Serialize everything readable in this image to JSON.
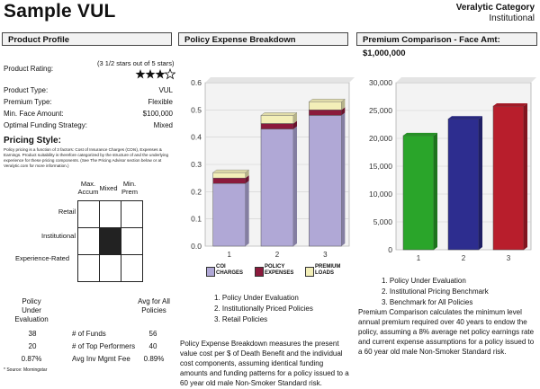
{
  "header": {
    "title": "Sample VUL",
    "category_label": "Veralytic Category",
    "category_value": "Institutional"
  },
  "sections": {
    "profile": "Product Profile",
    "expense": "Policy Expense Breakdown",
    "premium": "Premium Comparison - Face Amt: $1,000,000"
  },
  "profile": {
    "rating_label": "Product Rating:",
    "rating_text": "(3 1/2 stars out of 5 stars)",
    "rating_stars": 3.5,
    "rows": [
      {
        "label": "Product Type:",
        "value": "VUL"
      },
      {
        "label": "Premium Type:",
        "value": "Flexible"
      },
      {
        "label": "Min. Face Amount:",
        "value": "$100,000"
      },
      {
        "label": "Optimal Funding Strategy:",
        "value": "Mixed"
      }
    ],
    "pricing_title": "Pricing Style:",
    "pricing_note": "Policy pricing is a function of 3 factors: Cost of Insurance Charges (COIs), Expenses & Earnings. Product suitability is therefore categorized by the structure of and the underlying experience for these pricing components. (See The Pricing Advisor section below or at Veralytic.com for more information.)",
    "grid_cols": [
      "Max. Accum",
      "Mixed",
      "Min. Prem"
    ],
    "grid_rows": [
      "Retail",
      "Institutional",
      "Experience-Rated"
    ],
    "policy_col": "Policy Under Evaluation",
    "avg_col": "Avg for All Policies",
    "metrics": [
      {
        "policy": "38",
        "label": "# of Funds",
        "avg": "56"
      },
      {
        "policy": "20",
        "label": "# of Top Performers",
        "avg": "40"
      },
      {
        "policy": "0.87%",
        "label": "Avg Inv Mgmt Fee",
        "avg": "0.89%"
      }
    ],
    "source": "* Source: Morningstar"
  },
  "expense": {
    "legend": [
      "COI CHARGES",
      "POLICY EXPENSES",
      "PREMIUM LOADS"
    ],
    "list": [
      "1. Policy Under Evaluation",
      "2. Institutionally Priced Policies",
      "3. Retail Policies"
    ],
    "description": "Policy Expense Breakdown measures the present value cost per $ of Death Benefit and the individual cost components, assuming identical funding amounts and funding patterns for a policy issued to a 60 year old male Non-Smoker Standard risk."
  },
  "premium": {
    "list": [
      "1. Policy Under Evaluation",
      "2. Institutional Pricing Benchmark",
      "3. Benchmark for All Policies"
    ],
    "description": "Premium Comparison calculates the minimum level annual premium required over 40 years to endow the policy, assuming a 8% average net policy earnings rate and current expense assumptions for a policy issued to a 60 year old male Non-Smoker Standard risk."
  },
  "colors": {
    "coi": "#b0a8d6",
    "policy_exp": "#8b1a3c",
    "premium_load": "#f3efb8",
    "bar1": "#2aa52a",
    "bar2": "#2d2d8f",
    "bar3": "#b81e2c"
  },
  "chart_data": [
    {
      "type": "bar",
      "stacked": true,
      "categories": [
        "1",
        "2",
        "3"
      ],
      "series": [
        {
          "name": "COI CHARGES",
          "values": [
            0.23,
            0.43,
            0.48
          ]
        },
        {
          "name": "POLICY EXPENSES",
          "values": [
            0.02,
            0.02,
            0.02
          ]
        },
        {
          "name": "PREMIUM LOADS",
          "values": [
            0.02,
            0.03,
            0.03
          ]
        }
      ],
      "ylim": [
        0,
        0.6
      ],
      "yticks": [
        "0.0",
        "0.1",
        "0.2",
        "0.3",
        "0.4",
        "0.5",
        "0.6"
      ]
    },
    {
      "type": "bar",
      "categories": [
        "1",
        "2",
        "3"
      ],
      "values": [
        20500,
        23500,
        25800
      ],
      "ylim": [
        0,
        30000
      ],
      "yticks": [
        "0",
        "5,000",
        "10,000",
        "15,000",
        "20,000",
        "25,000",
        "30,000"
      ]
    }
  ]
}
